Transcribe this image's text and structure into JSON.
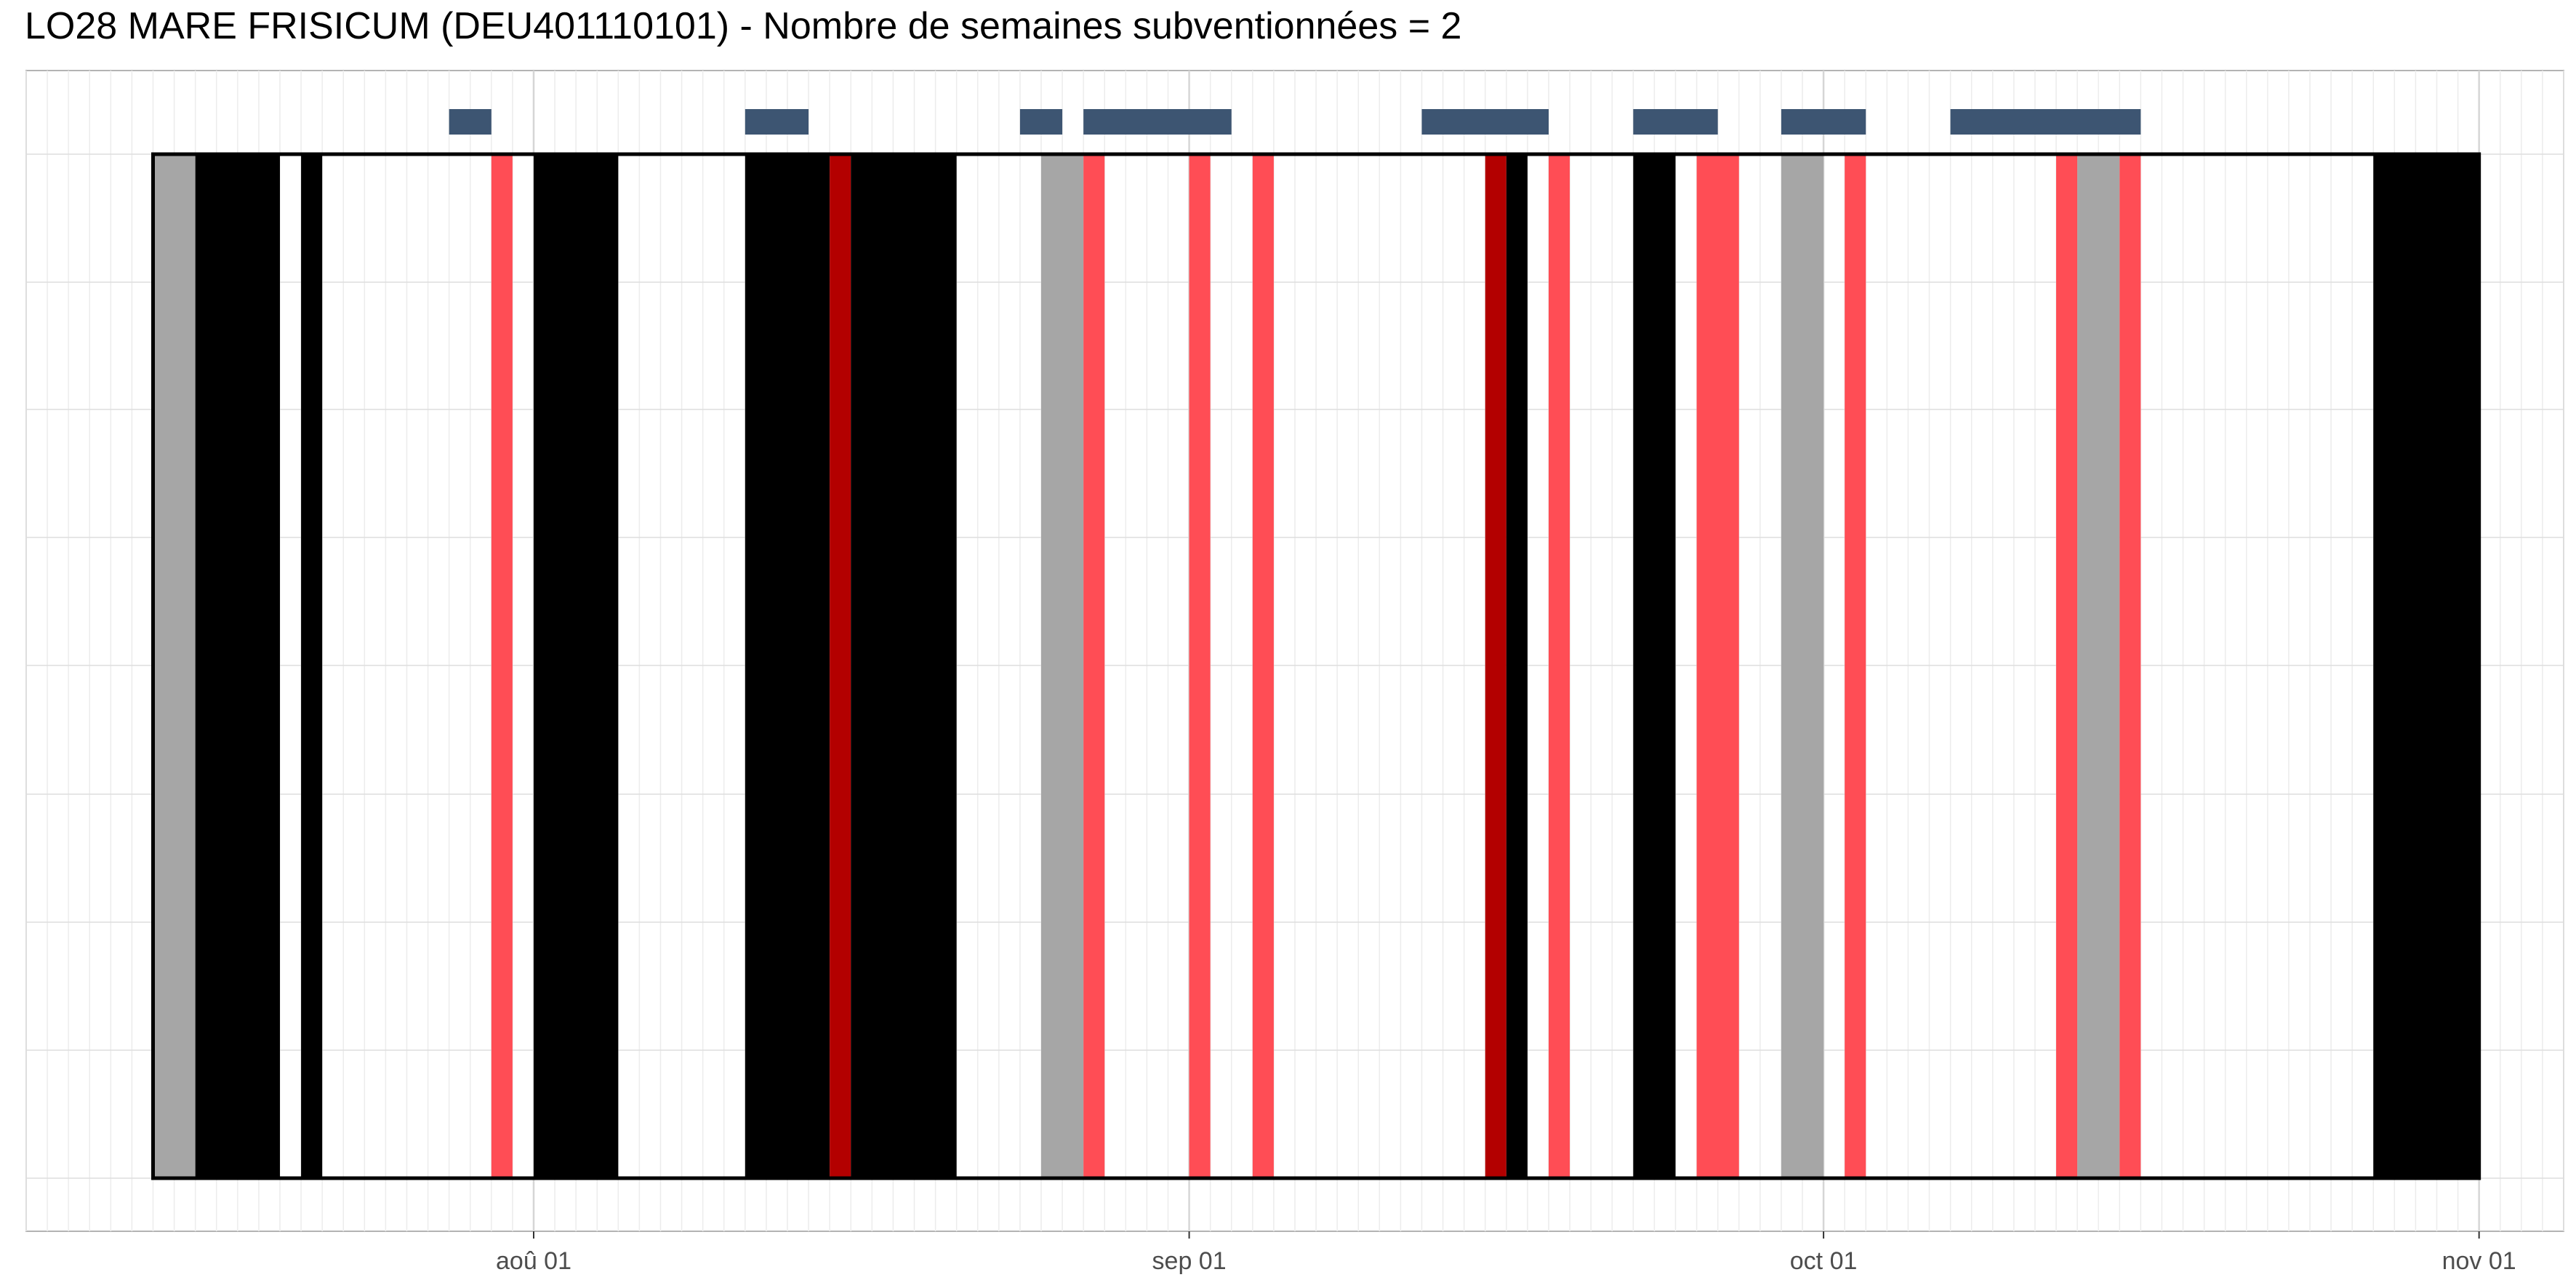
{
  "chart_data": {
    "type": "timeline",
    "title": "LO28 MARE FRISICUM (DEU401110101) - Nombre de semaines subventionnées = 2",
    "xlabel": "",
    "ylabel": "",
    "x_axis": {
      "type": "date",
      "range": [
        "2023-07-08",
        "2023-11-05"
      ],
      "ticks": [
        {
          "date": "2023-08-01",
          "label": "aoû 01"
        },
        {
          "date": "2023-09-01",
          "label": "sep 01"
        },
        {
          "date": "2023-10-01",
          "label": "oct 01"
        },
        {
          "date": "2023-11-01",
          "label": "nov 01"
        }
      ]
    },
    "grid": true,
    "period": {
      "start": "2023-07-14",
      "end": "2023-11-01"
    },
    "colors": {
      "grey": "#a6a6a6",
      "black": "#000000",
      "red": "#ff4d55",
      "dark_red": "#b30000",
      "navy": "#3d5572"
    },
    "bands": [
      {
        "start": "2023-07-14",
        "end": "2023-07-16",
        "color": "grey"
      },
      {
        "start": "2023-07-16",
        "end": "2023-07-20",
        "color": "black"
      },
      {
        "start": "2023-07-21",
        "end": "2023-07-22",
        "color": "black"
      },
      {
        "start": "2023-07-30",
        "end": "2023-07-31",
        "color": "red"
      },
      {
        "start": "2023-08-01",
        "end": "2023-08-05",
        "color": "black"
      },
      {
        "start": "2023-08-11",
        "end": "2023-08-15",
        "color": "black"
      },
      {
        "start": "2023-08-15",
        "end": "2023-08-16",
        "color": "dark_red"
      },
      {
        "start": "2023-08-16",
        "end": "2023-08-21",
        "color": "black"
      },
      {
        "start": "2023-08-25",
        "end": "2023-08-27",
        "color": "grey"
      },
      {
        "start": "2023-08-27",
        "end": "2023-08-28",
        "color": "red"
      },
      {
        "start": "2023-09-01",
        "end": "2023-09-02",
        "color": "red"
      },
      {
        "start": "2023-09-04",
        "end": "2023-09-05",
        "color": "red"
      },
      {
        "start": "2023-09-15",
        "end": "2023-09-16",
        "color": "dark_red"
      },
      {
        "start": "2023-09-16",
        "end": "2023-09-17",
        "color": "black"
      },
      {
        "start": "2023-09-18",
        "end": "2023-09-19",
        "color": "red"
      },
      {
        "start": "2023-09-22",
        "end": "2023-09-24",
        "color": "black"
      },
      {
        "start": "2023-09-25",
        "end": "2023-09-27",
        "color": "red"
      },
      {
        "start": "2023-09-29",
        "end": "2023-10-01",
        "color": "grey"
      },
      {
        "start": "2023-10-02",
        "end": "2023-10-03",
        "color": "red"
      },
      {
        "start": "2023-10-12",
        "end": "2023-10-13",
        "color": "red"
      },
      {
        "start": "2023-10-13",
        "end": "2023-10-15",
        "color": "grey"
      },
      {
        "start": "2023-10-15",
        "end": "2023-10-16",
        "color": "red"
      },
      {
        "start": "2023-10-27",
        "end": "2023-11-01",
        "color": "black"
      }
    ],
    "top_markers": [
      {
        "start": "2023-07-28",
        "end": "2023-07-30"
      },
      {
        "start": "2023-08-11",
        "end": "2023-08-14"
      },
      {
        "start": "2023-08-24",
        "end": "2023-08-26"
      },
      {
        "start": "2023-08-27",
        "end": "2023-09-03"
      },
      {
        "start": "2023-09-12",
        "end": "2023-09-18"
      },
      {
        "start": "2023-09-22",
        "end": "2023-09-26"
      },
      {
        "start": "2023-09-29",
        "end": "2023-10-03"
      },
      {
        "start": "2023-10-07",
        "end": "2023-10-16"
      }
    ]
  }
}
